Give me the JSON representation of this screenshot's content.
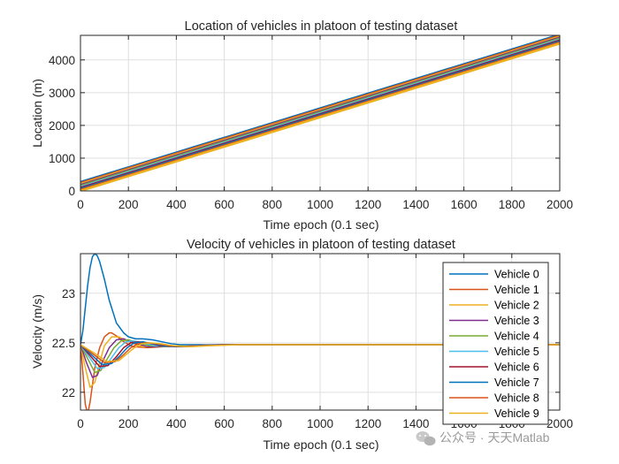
{
  "colors": {
    "series": [
      "#0072BD",
      "#D95319",
      "#EDB120",
      "#7E2F8E",
      "#77AC30",
      "#4DBEEE",
      "#A2142F",
      "#0072BD",
      "#D95319",
      "#EDB120"
    ],
    "grid": "#dfdfdf",
    "axis": "#262626"
  },
  "watermark": {
    "text": "公众号 · 天天Matlab",
    "icon": "wechat-bubbles-icon"
  },
  "chart_data": [
    {
      "type": "line",
      "title": "Location of vehicles in platoon of testing dataset",
      "xlabel": "Time epoch (0.1 sec)",
      "ylabel": "Location (m)",
      "xlim": [
        0,
        2000
      ],
      "ylim": [
        0,
        4750
      ],
      "xticks": [
        0,
        200,
        400,
        600,
        800,
        1000,
        1200,
        1400,
        1600,
        1800,
        2000
      ],
      "yticks": [
        0,
        1000,
        2000,
        3000,
        4000
      ],
      "xticklabels": [
        "0",
        "200",
        "400",
        "600",
        "800",
        "1000",
        "1200",
        "1400",
        "1600",
        "1800",
        "2000"
      ],
      "yticklabels": [
        "0",
        "1000",
        "2000",
        "3000",
        "4000"
      ],
      "grid": true,
      "legend": false,
      "series": [
        {
          "x": [
            0,
            2000
          ],
          "y": [
            270,
            4770
          ]
        },
        {
          "x": [
            0,
            2000
          ],
          "y": [
            240,
            4740
          ]
        },
        {
          "x": [
            0,
            2000
          ],
          "y": [
            210,
            4710
          ]
        },
        {
          "x": [
            0,
            2000
          ],
          "y": [
            180,
            4680
          ]
        },
        {
          "x": [
            0,
            2000
          ],
          "y": [
            150,
            4650
          ]
        },
        {
          "x": [
            0,
            2000
          ],
          "y": [
            120,
            4620
          ]
        },
        {
          "x": [
            0,
            2000
          ],
          "y": [
            90,
            4590
          ]
        },
        {
          "x": [
            0,
            2000
          ],
          "y": [
            60,
            4560
          ]
        },
        {
          "x": [
            0,
            2000
          ],
          "y": [
            30,
            4530
          ]
        },
        {
          "x": [
            0,
            2000
          ],
          "y": [
            0,
            4500
          ]
        }
      ]
    },
    {
      "type": "line",
      "title": "Velocity of vehicles in platoon of testing dataset",
      "xlabel": "Time epoch (0.1 sec)",
      "ylabel": "Velocity (m/s)",
      "xlim": [
        0,
        2000
      ],
      "ylim": [
        21.82,
        23.4
      ],
      "xticks": [
        0,
        200,
        400,
        600,
        800,
        1000,
        1200,
        1400,
        1600,
        1800,
        2000
      ],
      "yticks": [
        22,
        22.5,
        23
      ],
      "xticklabels": [
        "0",
        "200",
        "400",
        "600",
        "800",
        "1000",
        "1200",
        "1400",
        "1600",
        "1800",
        "2000"
      ],
      "yticklabels": [
        "22",
        "22.5",
        "23"
      ],
      "grid": true,
      "legend": "top-right",
      "series": [
        {
          "name": "Vehicle 0",
          "x": [
            0,
            10,
            20,
            30,
            40,
            50,
            60,
            70,
            80,
            100,
            120,
            150,
            180,
            200,
            230,
            260,
            300,
            340,
            380,
            420,
            500,
            700,
            2000
          ],
          "y": [
            22.48,
            22.62,
            22.85,
            23.08,
            23.26,
            23.37,
            23.4,
            23.38,
            23.32,
            23.14,
            22.93,
            22.7,
            22.6,
            22.56,
            22.54,
            22.54,
            22.53,
            22.51,
            22.49,
            22.48,
            22.48,
            22.48,
            22.48
          ]
        },
        {
          "name": "Vehicle 1",
          "x": [
            0,
            10,
            20,
            30,
            40,
            60,
            80,
            100,
            120,
            130,
            150,
            180,
            220,
            280,
            350,
            450,
            600,
            2000
          ],
          "y": [
            22.48,
            22.2,
            21.88,
            21.78,
            21.9,
            22.25,
            22.45,
            22.56,
            22.6,
            22.6,
            22.57,
            22.51,
            22.46,
            22.45,
            22.46,
            22.47,
            22.48,
            22.48
          ]
        },
        {
          "name": "Vehicle 2",
          "x": [
            0,
            20,
            40,
            60,
            80,
            100,
            130,
            160,
            200,
            260,
            330,
            450,
            600,
            2000
          ],
          "y": [
            22.48,
            22.25,
            22.05,
            22.1,
            22.3,
            22.47,
            22.56,
            22.56,
            22.51,
            22.46,
            22.46,
            22.47,
            22.48,
            22.48
          ]
        },
        {
          "name": "Vehicle 3",
          "x": [
            0,
            25,
            50,
            70,
            90,
            120,
            150,
            180,
            220,
            280,
            350,
            450,
            600,
            2000
          ],
          "y": [
            22.48,
            22.3,
            22.15,
            22.17,
            22.3,
            22.45,
            22.53,
            22.54,
            22.5,
            22.46,
            22.46,
            22.47,
            22.48,
            22.48
          ]
        },
        {
          "name": "Vehicle 4",
          "x": [
            0,
            30,
            60,
            85,
            110,
            140,
            170,
            200,
            240,
            290,
            360,
            450,
            600,
            2000
          ],
          "y": [
            22.48,
            22.34,
            22.2,
            22.22,
            22.33,
            22.45,
            22.52,
            22.53,
            22.5,
            22.47,
            22.46,
            22.47,
            22.48,
            22.48
          ]
        },
        {
          "name": "Vehicle 5",
          "x": [
            0,
            35,
            70,
            100,
            130,
            160,
            190,
            220,
            260,
            310,
            380,
            460,
            600,
            2000
          ],
          "y": [
            22.48,
            22.36,
            22.24,
            22.25,
            22.35,
            22.45,
            22.51,
            22.52,
            22.5,
            22.47,
            22.46,
            22.47,
            22.48,
            22.48
          ]
        },
        {
          "name": "Vehicle 6",
          "x": [
            0,
            40,
            80,
            115,
            150,
            180,
            210,
            240,
            280,
            330,
            400,
            480,
            600,
            2000
          ],
          "y": [
            22.48,
            22.37,
            22.26,
            22.27,
            22.36,
            22.45,
            22.5,
            22.51,
            22.5,
            22.47,
            22.46,
            22.47,
            22.48,
            22.48
          ]
        },
        {
          "name": "Vehicle 7",
          "x": [
            0,
            45,
            90,
            130,
            165,
            195,
            225,
            260,
            300,
            350,
            420,
            500,
            620,
            2000
          ],
          "y": [
            22.48,
            22.38,
            22.28,
            22.29,
            22.37,
            22.45,
            22.5,
            22.51,
            22.49,
            22.47,
            22.46,
            22.47,
            22.48,
            22.48
          ]
        },
        {
          "name": "Vehicle 8",
          "x": [
            0,
            50,
            100,
            145,
            180,
            210,
            240,
            275,
            320,
            370,
            440,
            520,
            640,
            2000
          ],
          "y": [
            22.48,
            22.39,
            22.3,
            22.31,
            22.38,
            22.45,
            22.49,
            22.5,
            22.49,
            22.47,
            22.46,
            22.47,
            22.48,
            22.48
          ]
        },
        {
          "name": "Vehicle 9",
          "x": [
            0,
            55,
            110,
            160,
            195,
            225,
            255,
            290,
            335,
            390,
            460,
            540,
            660,
            2000
          ],
          "y": [
            22.48,
            22.4,
            22.31,
            22.32,
            22.39,
            22.45,
            22.49,
            22.5,
            22.49,
            22.47,
            22.46,
            22.47,
            22.48,
            22.48
          ]
        }
      ]
    }
  ]
}
